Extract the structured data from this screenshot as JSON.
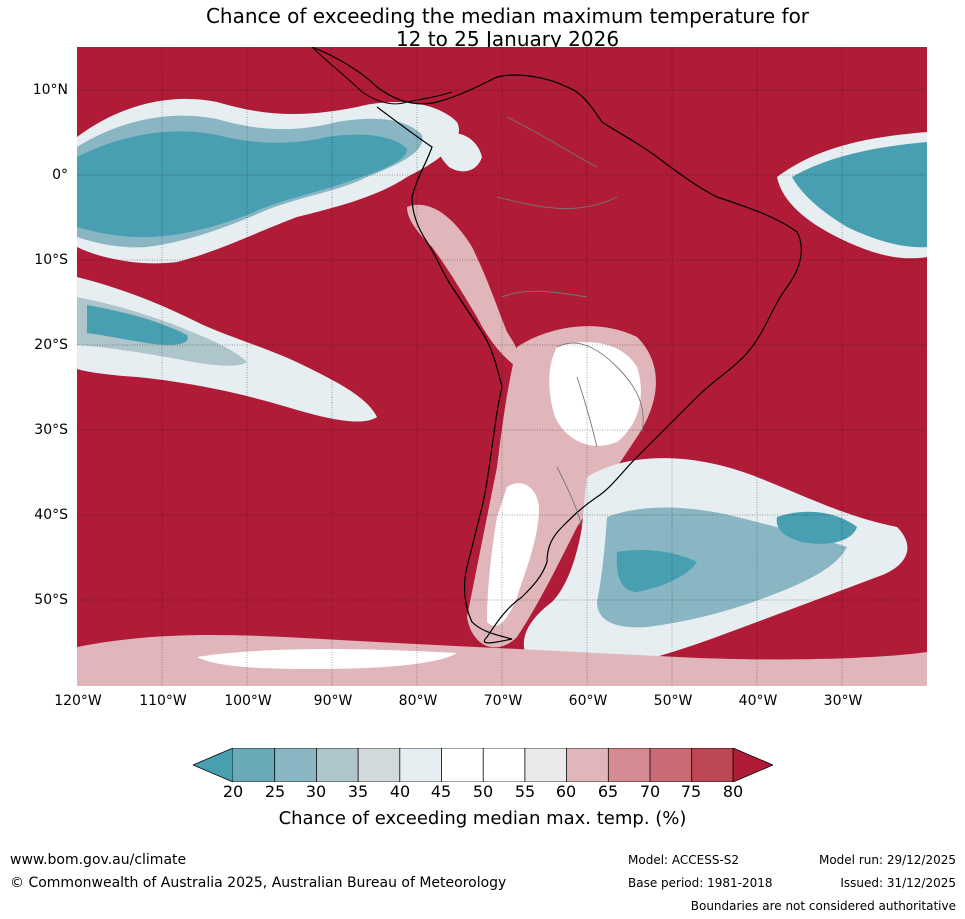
{
  "title": {
    "line1": "Chance of exceeding the median maximum temperature for",
    "line2": "12 to 25 January 2026"
  },
  "map": {
    "region": "South America",
    "lat_labels": [
      "10°N",
      "0°",
      "10°S",
      "20°S",
      "30°S",
      "40°S",
      "50°S"
    ],
    "lon_labels": [
      "120°W",
      "110°W",
      "100°W",
      "90°W",
      "80°W",
      "70°W",
      "60°W",
      "50°W",
      "40°W",
      "30°W"
    ]
  },
  "colorbar": {
    "ticks": [
      "20",
      "25",
      "30",
      "35",
      "40",
      "45",
      "50",
      "55",
      "60",
      "65",
      "70",
      "75",
      "80"
    ],
    "colors": {
      "below20": "#479fb1",
      "c20_25": "#6aa9b6",
      "c25_30": "#8ab6c4",
      "c30_35": "#adc5cb",
      "c35_40": "#d1d9da",
      "c40_45": "#e6eef1",
      "c45_50": "#ffffff",
      "c50_55": "#ffffff",
      "c55_60": "#eaeaeb",
      "c60_65": "#e1b6bb",
      "c65_70": "#d58a92",
      "c70_75": "#c96b74",
      "c75_80": "#be4755",
      "above80": "#b01c37"
    },
    "label": "Chance of exceeding median max. temp. (%)"
  },
  "footer": {
    "website": "www.bom.gov.au/climate",
    "copyright": "© Commonwealth of Australia 2025, Australian Bureau of Meteorology",
    "model": "Model: ACCESS-S2",
    "base_period": "Base period: 1981-2018",
    "model_run": "Model run: 29/12/2025",
    "issued": "Issued: 31/12/2025",
    "disclaimer": "Boundaries are not considered authoritative"
  }
}
